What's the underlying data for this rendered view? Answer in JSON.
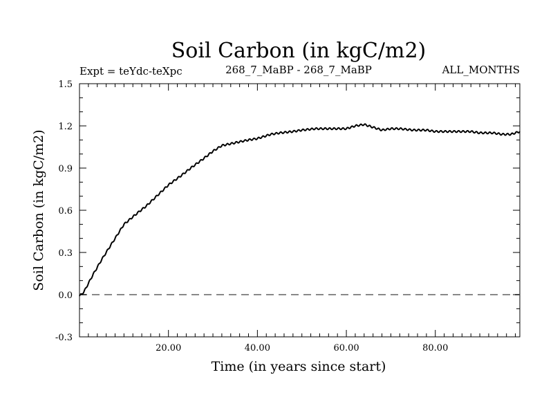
{
  "chart_data": {
    "type": "line",
    "title": "Soil Carbon (in kgC/m2)",
    "subtitle_left": "Expt = teYdc-teXpc",
    "subtitle_center": "268_7_MaBP - 268_7_MaBP",
    "subtitle_right": "ALL_MONTHS",
    "xlabel": "Time (in years since start)",
    "ylabel": "Soil Carbon (in kgC/m2)",
    "xlim": [
      0,
      99
    ],
    "ylim": [
      -0.3,
      1.5
    ],
    "x_ticks": [
      20,
      40,
      60,
      80
    ],
    "x_tick_labels": [
      "20.00",
      "40.00",
      "60.00",
      "80.00"
    ],
    "y_ticks": [
      -0.3,
      0.0,
      0.3,
      0.6,
      0.9,
      1.2,
      1.5
    ],
    "y_tick_labels": [
      "-0.3",
      "0.0",
      "0.3",
      "0.6",
      "0.9",
      "1.2",
      "1.5"
    ],
    "reference_line": {
      "y": 0.0,
      "style": "dashed"
    },
    "series": [
      {
        "name": "Soil Carbon",
        "x": [
          0,
          1,
          3,
          5,
          8,
          10,
          13,
          15,
          18,
          20,
          23,
          25,
          28,
          30,
          32,
          35,
          38,
          40,
          43,
          45,
          48,
          50,
          53,
          55,
          57,
          60,
          62,
          64,
          66,
          68,
          70,
          72,
          75,
          78,
          80,
          83,
          85,
          88,
          90,
          93,
          95,
          97,
          99
        ],
        "y": [
          -0.01,
          0.02,
          0.14,
          0.25,
          0.4,
          0.5,
          0.58,
          0.63,
          0.72,
          0.78,
          0.85,
          0.9,
          0.97,
          1.02,
          1.06,
          1.08,
          1.1,
          1.11,
          1.14,
          1.15,
          1.16,
          1.17,
          1.18,
          1.18,
          1.18,
          1.18,
          1.2,
          1.21,
          1.19,
          1.17,
          1.18,
          1.18,
          1.17,
          1.17,
          1.16,
          1.16,
          1.16,
          1.16,
          1.15,
          1.15,
          1.14,
          1.14,
          1.16
        ]
      }
    ]
  }
}
